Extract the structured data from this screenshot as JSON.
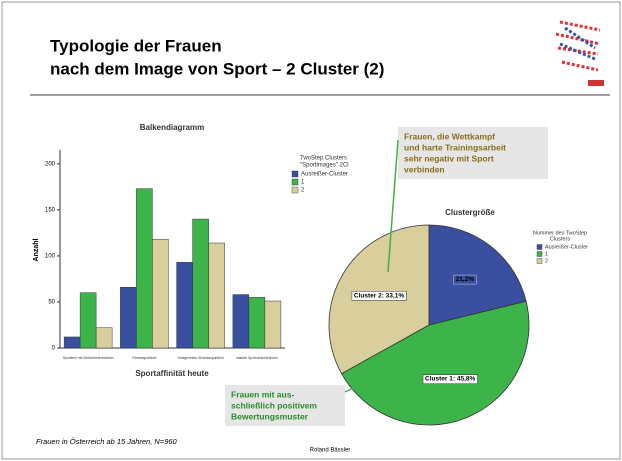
{
  "slide": {
    "title": [
      "Typologie der Frauen",
      "nach dem Image von Sport – 2 Cluster (2)"
    ],
    "callouts": [
      [
        "Frauen, die Wettkampf",
        "und harte Trainingsarbeit",
        "sehr negativ mit Sport",
        "verbinden"
      ],
      [
        "Frauen mit aus-",
        "schließlich positivem",
        "Bewertungsmuster"
      ]
    ],
    "footnote": "Frauen in Österreich ab 15 Jahren, N=960",
    "author": "Roland Bässler"
  },
  "chart_data": [
    {
      "type": "bar",
      "title": "Balkendiagramm",
      "y_label": "Anzahl",
      "x_label": "Sportaffinität heute",
      "legend_title": [
        "TwoStep Clusters",
        "\"Sportimages\" 2Cl"
      ],
      "categories": [
        "Sportlerin mit Stellvertreterfunktion",
        "Fitnesssportlerin",
        "Gelegenheits-/Urlaubssportlerin",
        "Inaktive Sportverächterinnen"
      ],
      "series": [
        {
          "name": "Ausreißer-Cluster",
          "color": "#3a4fa0",
          "values": [
            12,
            66,
            93,
            58
          ]
        },
        {
          "name": "1",
          "color": "#3cb44a",
          "values": [
            60,
            173,
            140,
            55
          ]
        },
        {
          "name": "2",
          "color": "#d8cf9c",
          "values": [
            22,
            118,
            114,
            51
          ]
        }
      ],
      "ylim": [
        0,
        215
      ],
      "yticks": [
        0,
        50,
        100,
        150,
        200
      ]
    },
    {
      "type": "pie",
      "title": "Clustergröße",
      "legend_title": [
        "Nummer des TwoStep",
        "Clusters"
      ],
      "categories": [
        "Ausreißer-Cluster",
        "1",
        "2"
      ],
      "values": [
        21.2,
        45.8,
        33.1
      ],
      "value_labels": [
        "21,2%",
        "Cluster 1: 45,8%",
        "Cluster 2: 33,1%"
      ],
      "colors": [
        "#3a4fa0",
        "#3cb44a",
        "#d8cf9c"
      ]
    }
  ]
}
